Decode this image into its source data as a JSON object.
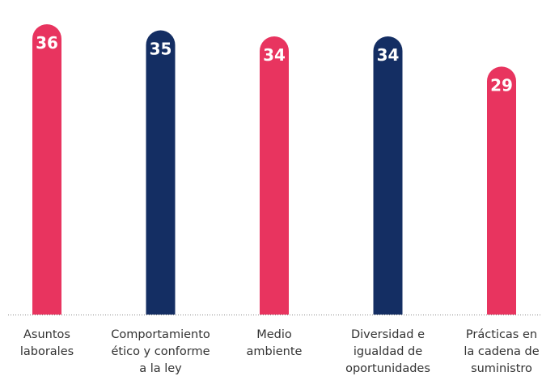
{
  "chart_data": {
    "type": "bar",
    "categories": [
      "Asuntos\nlaborales",
      "Comportamiento\nético y conforme\na la ley",
      "Medio\nambiente",
      "Diversidad e\nigualdad de\noportunidades",
      "Prácticas en\nla cadena de\nsuministro"
    ],
    "values": [
      36,
      35,
      34,
      34,
      29
    ],
    "colors": [
      "#e8345f",
      "#142e63",
      "#e8345f",
      "#142e63",
      "#e8345f"
    ],
    "ylim": [
      -12,
      36
    ]
  }
}
